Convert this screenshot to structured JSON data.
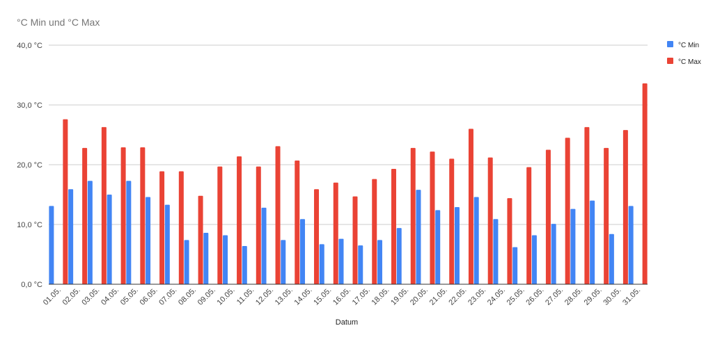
{
  "chart_data": {
    "type": "bar",
    "title": "°C Min und °C Max",
    "xlabel": "Datum",
    "ylabel": "",
    "ylim": [
      0,
      40
    ],
    "yticks": [
      {
        "value": 0,
        "label": "0,0 °C"
      },
      {
        "value": 10,
        "label": "10,0 °C"
      },
      {
        "value": 20,
        "label": "20,0 °C"
      },
      {
        "value": 30,
        "label": "30,0 °C"
      },
      {
        "value": 40,
        "label": "40,0 °C"
      }
    ],
    "grid": true,
    "legend_position": "right",
    "categories": [
      "01.05.",
      "02.05.",
      "03.05.",
      "04.05.",
      "05.05.",
      "06.05.",
      "07.05.",
      "08.05.",
      "09.05.",
      "10.05.",
      "11.05.",
      "12.05.",
      "13.05.",
      "14.05.",
      "15.05.",
      "16.05.",
      "17.05.",
      "18.05.",
      "19.05.",
      "20.05.",
      "21.05.",
      "22.05.",
      "23.05.",
      "24.05.",
      "25.05.",
      "26.05.",
      "27.05.",
      "28.05.",
      "29.05.",
      "30.05.",
      "31.05."
    ],
    "series": [
      {
        "name": "°C Min",
        "color": "#4285f4",
        "values": [
          13.1,
          15.9,
          17.3,
          15.0,
          17.3,
          14.6,
          13.3,
          7.4,
          8.6,
          8.2,
          6.4,
          12.8,
          7.4,
          10.9,
          6.7,
          7.6,
          6.5,
          7.4,
          9.4,
          15.8,
          12.4,
          12.9,
          14.6,
          10.9,
          6.2,
          8.2,
          10.1,
          12.6,
          14.0,
          8.4,
          13.1
        ]
      },
      {
        "name": "°C Max",
        "color": "#ea4335",
        "values": [
          27.6,
          22.8,
          26.3,
          22.9,
          22.9,
          18.9,
          18.9,
          14.8,
          19.7,
          21.4,
          19.7,
          23.1,
          20.7,
          15.9,
          17.0,
          14.7,
          17.6,
          19.3,
          22.8,
          22.2,
          21.0,
          26.0,
          21.2,
          14.4,
          19.6,
          22.5,
          24.5,
          26.3,
          22.8,
          25.8,
          33.6
        ]
      }
    ]
  }
}
